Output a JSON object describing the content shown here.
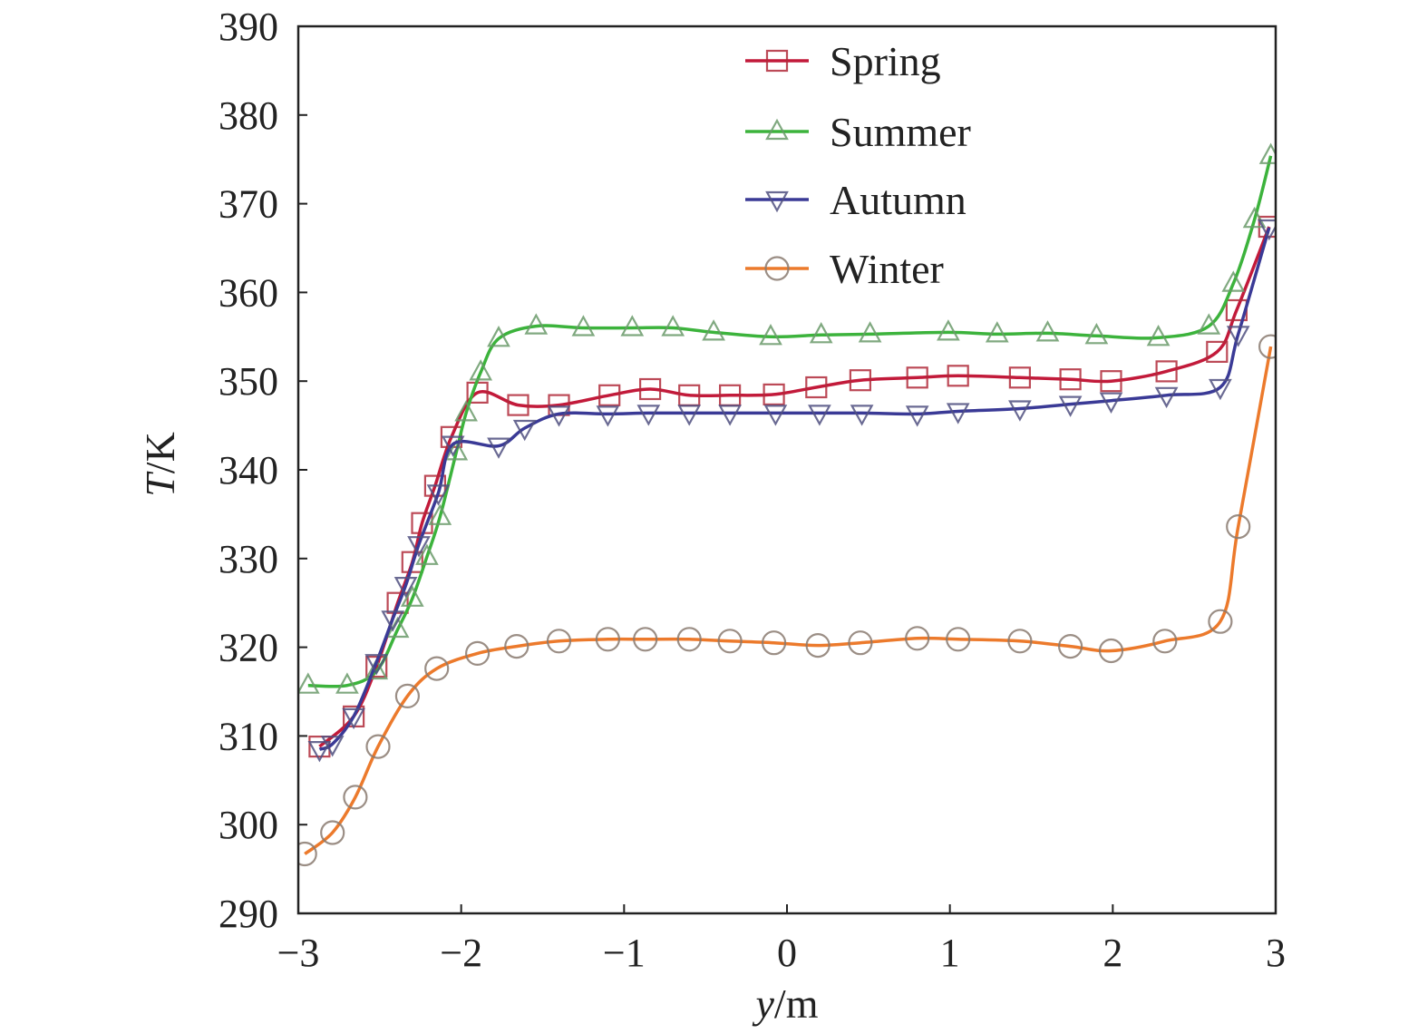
{
  "chart_data": {
    "type": "line",
    "title": "",
    "xlabel_italic": "y",
    "xlabel_unit": "/m",
    "ylabel_italic": "T",
    "ylabel_unit": "/K",
    "xlim": [
      -3,
      3
    ],
    "ylim": [
      290,
      390
    ],
    "xticks": [
      -3,
      -2,
      -1,
      0,
      1,
      2,
      3
    ],
    "xtick_labels": [
      "−3",
      "−2",
      "−1",
      "0",
      "1",
      "2",
      "3"
    ],
    "yticks": [
      290,
      300,
      310,
      320,
      330,
      340,
      350,
      360,
      370,
      380,
      390
    ],
    "ytick_labels": [
      "290",
      "300",
      "310",
      "320",
      "330",
      "340",
      "350",
      "360",
      "370",
      "380",
      "390"
    ],
    "grid": false,
    "legend_position": "top-center",
    "series": [
      {
        "name": "Spring",
        "marker": "square",
        "color": "#c21a3a",
        "x": [
          -2.87,
          -2.66,
          -2.52,
          -2.39,
          -2.3,
          -2.24,
          -2.16,
          -2.06,
          -1.9,
          -1.65,
          -1.4,
          -1.09,
          -0.84,
          -0.6,
          -0.35,
          -0.08,
          0.18,
          0.45,
          0.8,
          1.05,
          1.43,
          1.74,
          1.99,
          2.33,
          2.64,
          2.76,
          2.96
        ],
        "y": [
          308.8,
          312.2,
          317.8,
          325.0,
          329.6,
          334.0,
          338.2,
          343.7,
          348.7,
          347.3,
          347.3,
          348.4,
          349.1,
          348.4,
          348.4,
          348.5,
          349.3,
          350.1,
          350.4,
          350.6,
          350.4,
          350.2,
          350.0,
          351.1,
          353.3,
          358.0,
          367.4
        ]
      },
      {
        "name": "Summer",
        "marker": "triangle-up",
        "color": "#3cb33c",
        "x": [
          -2.94,
          -2.7,
          -2.52,
          -2.39,
          -2.3,
          -2.21,
          -2.13,
          -2.03,
          -1.97,
          -1.88,
          -1.77,
          -1.54,
          -1.25,
          -0.95,
          -0.7,
          -0.45,
          -0.1,
          0.21,
          0.51,
          0.99,
          1.29,
          1.6,
          1.9,
          2.28,
          2.59,
          2.74,
          2.87,
          2.97
        ],
        "y": [
          315.7,
          315.7,
          317.3,
          322.0,
          325.5,
          330.2,
          334.7,
          342.0,
          346.4,
          351.0,
          354.8,
          356.2,
          356.0,
          356.0,
          356.0,
          355.5,
          355.0,
          355.2,
          355.3,
          355.5,
          355.3,
          355.4,
          355.1,
          354.9,
          356.2,
          361.0,
          368.2,
          375.4
        ]
      },
      {
        "name": "Autumn",
        "marker": "triangle-down",
        "color": "#3a3a96",
        "x": [
          -2.87,
          -2.79,
          -2.66,
          -2.52,
          -2.42,
          -2.34,
          -2.26,
          -2.14,
          -2.05,
          -1.77,
          -1.61,
          -1.4,
          -1.1,
          -0.85,
          -0.6,
          -0.35,
          -0.07,
          0.2,
          0.46,
          0.8,
          1.05,
          1.43,
          1.74,
          1.99,
          2.33,
          2.66,
          2.77,
          2.96
        ],
        "y": [
          308.5,
          309.1,
          312.2,
          318.3,
          323.2,
          327.0,
          331.6,
          337.4,
          342.9,
          342.7,
          344.7,
          346.3,
          346.3,
          346.4,
          346.4,
          346.4,
          346.4,
          346.4,
          346.4,
          346.3,
          346.6,
          346.9,
          347.4,
          347.8,
          348.4,
          349.3,
          355.3,
          367.3
        ]
      },
      {
        "name": "Winter",
        "marker": "circle",
        "color": "#ec7a2c",
        "x": [
          -2.96,
          -2.79,
          -2.65,
          -2.51,
          -2.33,
          -2.15,
          -1.9,
          -1.66,
          -1.4,
          -1.1,
          -0.87,
          -0.6,
          -0.35,
          -0.08,
          0.19,
          0.45,
          0.8,
          1.05,
          1.43,
          1.74,
          1.99,
          2.32,
          2.66,
          2.77,
          2.97
        ],
        "y": [
          296.7,
          299.1,
          303.1,
          308.8,
          314.5,
          317.6,
          319.3,
          320.1,
          320.7,
          320.9,
          320.9,
          320.9,
          320.7,
          320.5,
          320.2,
          320.5,
          321.0,
          320.9,
          320.7,
          320.1,
          319.6,
          320.7,
          322.9,
          333.6,
          353.9
        ]
      }
    ]
  }
}
